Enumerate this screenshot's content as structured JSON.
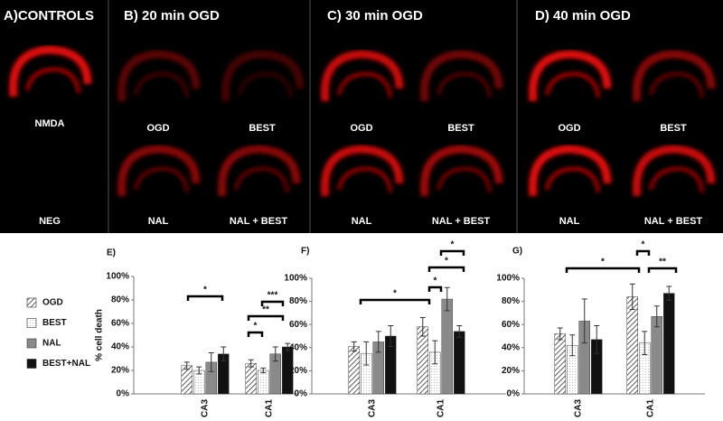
{
  "panels": [
    {
      "title": "A)CONTROLS",
      "images": [
        "NMDA",
        "NEG"
      ]
    },
    {
      "title": "B) 20 min OGD",
      "images": [
        "OGD",
        "BEST",
        "NAL",
        "NAL + BEST"
      ]
    },
    {
      "title": "C) 30 min OGD",
      "images": [
        "OGD",
        "BEST",
        "NAL",
        "NAL + BEST"
      ]
    },
    {
      "title": "D) 40 min OGD",
      "images": [
        "OGD",
        "BEST",
        "NAL",
        "NAL + BEST"
      ]
    }
  ],
  "chart_data": [
    {
      "type": "bar",
      "title": "E)",
      "y_label": "% cell death",
      "categories": [
        "CA3",
        "CA1"
      ],
      "series": [
        {
          "name": "OGD",
          "color": "#ffffff",
          "pattern": "hatch",
          "values": [
            24,
            26
          ],
          "errors": [
            3,
            3
          ]
        },
        {
          "name": "BEST",
          "color": "#ffffff",
          "pattern": "dots",
          "values": [
            20,
            20
          ],
          "errors": [
            3,
            2
          ]
        },
        {
          "name": "NAL",
          "color": "#8a8a8a",
          "values": [
            27,
            34
          ],
          "errors": [
            8,
            6
          ]
        },
        {
          "name": "BEST+NAL",
          "color": "#111111",
          "values": [
            34,
            40
          ],
          "errors": [
            6,
            3
          ]
        }
      ],
      "ylim": [
        0,
        100
      ],
      "yticks": [
        {
          "value": 0,
          "label": "0%"
        },
        {
          "value": 20,
          "label": "20%"
        },
        {
          "value": 40,
          "label": "40%"
        },
        {
          "value": 60,
          "label": "60%"
        },
        {
          "value": 80,
          "label": "80%"
        },
        {
          "value": 100,
          "label": "100%"
        }
      ],
      "annotations": [
        "*",
        "*",
        "**",
        "***"
      ]
    },
    {
      "type": "bar",
      "title": "F)",
      "categories": [
        "CA3",
        "CA1"
      ],
      "series": [
        {
          "name": "OGD",
          "color": "#ffffff",
          "pattern": "hatch",
          "values": [
            41,
            58
          ],
          "errors": [
            4,
            8
          ]
        },
        {
          "name": "BEST",
          "color": "#ffffff",
          "pattern": "dots",
          "values": [
            35,
            36
          ],
          "errors": [
            10,
            10
          ]
        },
        {
          "name": "NAL",
          "color": "#8a8a8a",
          "values": [
            45,
            82
          ],
          "errors": [
            9,
            10
          ]
        },
        {
          "name": "BEST+NAL",
          "color": "#111111",
          "values": [
            50,
            54
          ],
          "errors": [
            9,
            5
          ]
        }
      ],
      "ylim": [
        0,
        100
      ],
      "yticks": [
        {
          "value": 0,
          "label": "0%"
        },
        {
          "value": 20,
          "label": "20%"
        },
        {
          "value": 40,
          "label": "40%"
        },
        {
          "value": 60,
          "label": "60%"
        },
        {
          "value": 80,
          "label": "80%"
        },
        {
          "value": 100,
          "label": "100%"
        }
      ],
      "annotations": [
        "*",
        "*",
        "*",
        "*"
      ]
    },
    {
      "type": "bar",
      "title": "G)",
      "categories": [
        "CA3",
        "CA1"
      ],
      "series": [
        {
          "name": "OGD",
          "color": "#ffffff",
          "pattern": "hatch",
          "values": [
            52,
            84
          ],
          "errors": [
            5,
            11
          ]
        },
        {
          "name": "BEST",
          "color": "#ffffff",
          "pattern": "dots",
          "values": [
            42,
            44
          ],
          "errors": [
            9,
            10
          ]
        },
        {
          "name": "NAL",
          "color": "#8a8a8a",
          "values": [
            63,
            67
          ],
          "errors": [
            19,
            9
          ]
        },
        {
          "name": "BEST+NAL",
          "color": "#111111",
          "values": [
            47,
            87
          ],
          "errors": [
            12,
            6
          ]
        }
      ],
      "ylim": [
        0,
        100
      ],
      "yticks": [
        {
          "value": 0,
          "label": "0%"
        },
        {
          "value": 20,
          "label": "20%"
        },
        {
          "value": 40,
          "label": "40%"
        },
        {
          "value": 60,
          "label": "60%"
        },
        {
          "value": 80,
          "label": "80%"
        },
        {
          "value": 100,
          "label": "100%"
        }
      ],
      "annotations": [
        "*",
        "*",
        "**"
      ]
    }
  ]
}
